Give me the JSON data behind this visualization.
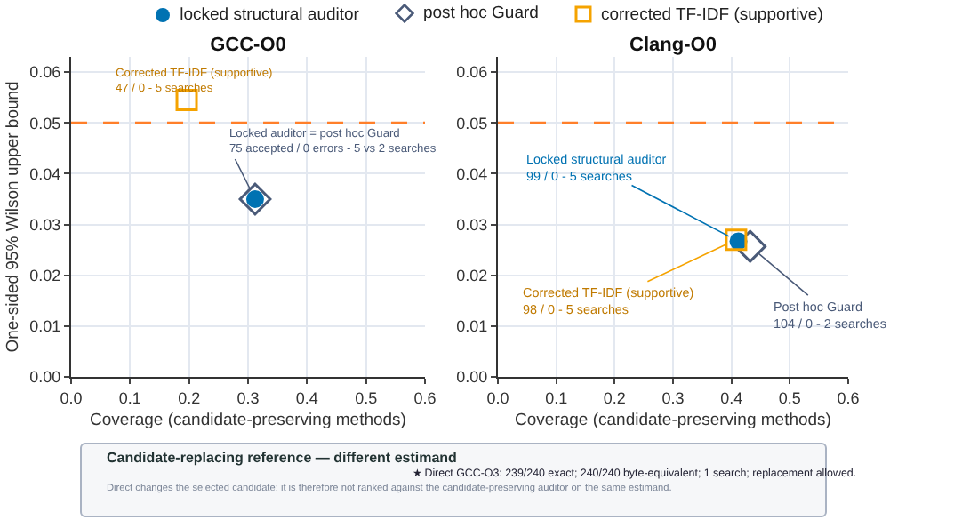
{
  "chart_data": [
    {
      "type": "scatter",
      "title": "GCC-O0",
      "xlabel": "Coverage (candidate-preserving methods)",
      "ylabel": "One-sided 95% Wilson upper bound",
      "xlim": [
        0,
        0.6
      ],
      "ylim": [
        0,
        0.063
      ],
      "xticks": [
        {
          "value": 0,
          "label": "0.0"
        },
        0.1,
        0.2,
        0.3,
        0.4,
        0.5,
        0.6
      ],
      "yticks": [
        {
          "value": 0,
          "label": "0.00"
        },
        0.01,
        0.02,
        0.03,
        0.04,
        0.05,
        0.06
      ],
      "grid": true,
      "legend": "top",
      "series": [
        {
          "name": "locked structural auditor",
          "color": "#0072b2",
          "marker": "circle",
          "x": [
            0.312
          ],
          "values": [
            0.035
          ]
        },
        {
          "name": "post hoc Guard",
          "color": "#4a5a78",
          "marker": "diamond",
          "x": [
            0.312
          ],
          "values": [
            0.035
          ]
        },
        {
          "name": "corrected TF-IDF (supportive)",
          "color": "#f5a300",
          "marker": "square",
          "x": [
            0.196
          ],
          "values": [
            0.0545
          ]
        }
      ],
      "ref_lines": [
        {
          "axis": "y",
          "value": 0.05,
          "color": "#ff7f2a",
          "line_style": "dashed"
        }
      ],
      "annotations": [
        {
          "text": "Corrected TF-IDF (supportive)\n47 / 0 - 5 searches",
          "x": 0.196,
          "y": 0.0545
        },
        {
          "text": "Locked auditor = post hoc Guard\n75 accepted / 0 errors - 5 vs 2 searches",
          "x": 0.312,
          "y": 0.035
        }
      ]
    },
    {
      "type": "scatter",
      "title": "Clang-O0",
      "xlabel": "Coverage (candidate-preserving methods)",
      "xlim": [
        0,
        0.6
      ],
      "ylim": [
        0,
        0.063
      ],
      "xticks": [
        {
          "value": 0,
          "label": "0.0"
        },
        0.1,
        0.2,
        0.3,
        0.4,
        0.5,
        0.6
      ],
      "yticks": [
        {
          "value": 0,
          "label": "0.00"
        },
        0.01,
        0.02,
        0.03,
        0.04,
        0.05,
        0.06
      ],
      "grid": true,
      "series": [
        {
          "color": "#0072b2",
          "marker": "circle",
          "x": [
            0.412
          ],
          "values": [
            0.0267
          ]
        },
        {
          "color": "#4a5a78",
          "marker": "diamond",
          "x": [
            0.432
          ],
          "values": [
            0.0257
          ]
        },
        {
          "color": "#f5a300",
          "marker": "square",
          "x": [
            0.408
          ],
          "values": [
            0.027
          ]
        }
      ],
      "ref_lines": [
        {
          "axis": "y",
          "value": 0.05,
          "color": "#ff7f2a",
          "line_style": "dashed"
        }
      ],
      "annotations": [
        {
          "text": "Locked structural auditor\n99 / 0 - 5 searches",
          "x": 0.412,
          "y": 0.0267
        },
        {
          "text": "Corrected TF-IDF (supportive)\n98 / 0 - 5 searches",
          "x": 0.408,
          "y": 0.027
        },
        {
          "text": "Post hoc Guard\n104 / 0 - 2 searches",
          "x": 0.432,
          "y": 0.0257
        }
      ]
    },
    {
      "type": "other",
      "title": "Candidate-replacing reference — different estimand",
      "annotations": [
        "★ Direct GCC-O3: 239/240 exact; 240/240 byte-equivalent; 1 search; replacement allowed.",
        "Direct changes the selected candidate; it is therefore not ranked against the candidate-preserving auditor on the same estimand."
      ]
    }
  ]
}
